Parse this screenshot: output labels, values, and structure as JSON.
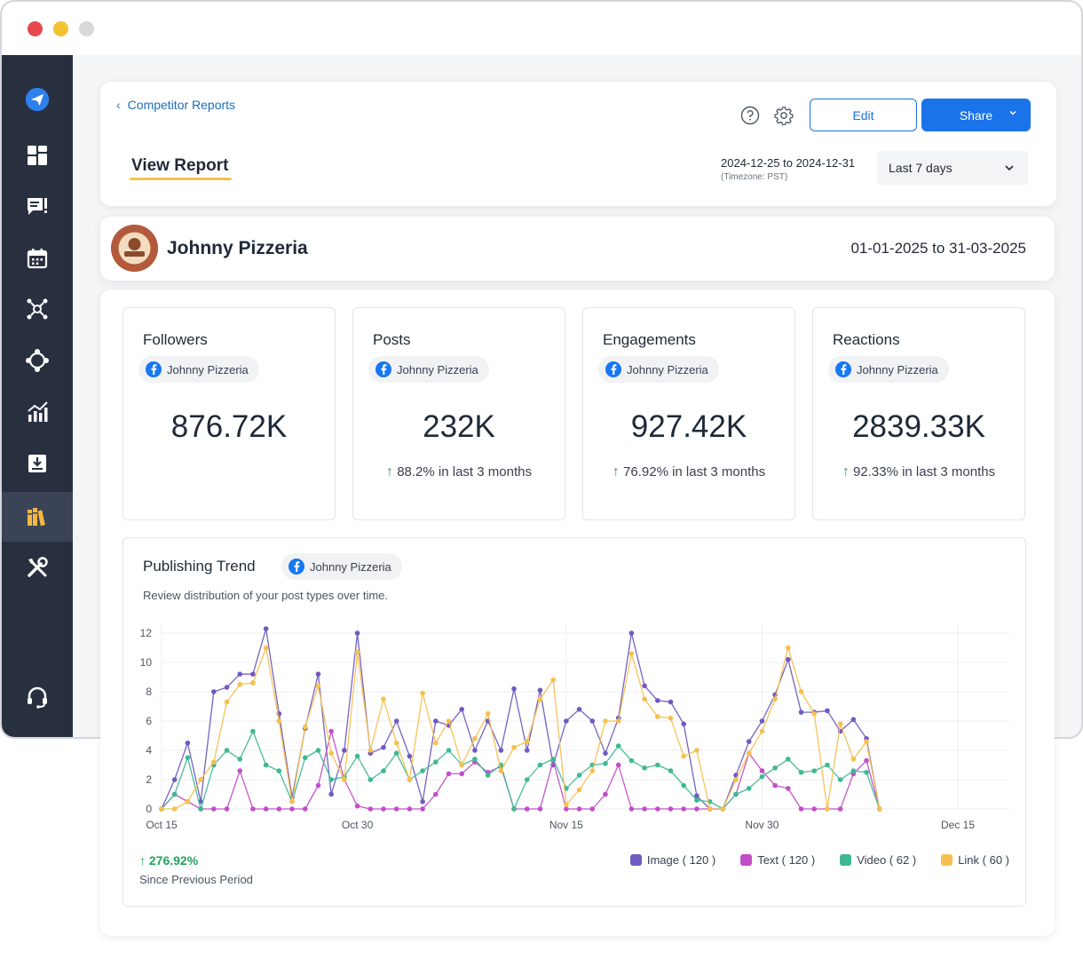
{
  "window": {
    "sidebar_items": [
      {
        "name": "send-icon",
        "label": "Publish"
      },
      {
        "name": "dashboard-icon",
        "label": "Dashboard"
      },
      {
        "name": "message-icon",
        "label": "Inbox"
      },
      {
        "name": "calendar-icon",
        "label": "Calendar"
      },
      {
        "name": "network-icon",
        "label": "Social"
      },
      {
        "name": "diamond-move-icon",
        "label": "Engage"
      },
      {
        "name": "analytics-icon",
        "label": "Analytics"
      },
      {
        "name": "download-icon",
        "label": "Downloads"
      },
      {
        "name": "library-icon",
        "label": "Library",
        "active": true
      },
      {
        "name": "tools-icon",
        "label": "Tools"
      },
      {
        "name": "support-icon",
        "label": "Support"
      }
    ]
  },
  "header": {
    "back_label": "Competitor Reports",
    "title": "View Report",
    "edit_label": "Edit",
    "share_label": "Share",
    "date_range": "2024-12-25 to 2024-12-31",
    "timezone": "(Timezone: PST)",
    "period_select": "Last 7 days"
  },
  "profile": {
    "name": "Johnny Pizzeria",
    "date_range": "01-01-2025 to 31-03-2025"
  },
  "stats": [
    {
      "title": "Followers",
      "account": "Johnny Pizzeria",
      "value": "876.72K",
      "change": ""
    },
    {
      "title": "Posts",
      "account": "Johnny Pizzeria",
      "value": "232K",
      "change": "88.2% in last 3 months"
    },
    {
      "title": "Engagements",
      "account": "Johnny Pizzeria",
      "value": "927.42K",
      "change": "76.92% in last 3 months"
    },
    {
      "title": "Reactions",
      "account": "Johnny Pizzeria",
      "value": "2839.33K",
      "change": "92.33% in last 3 months"
    }
  ],
  "trend": {
    "title": "Publishing Trend",
    "account": "Johnny Pizzeria",
    "subtitle": "Review distribution of your post types over time.",
    "growth": "276.92%",
    "growth_label": "Since Previous Period"
  },
  "colors": {
    "image": "#6f5bbf",
    "text": "#c14ec9",
    "video": "#3fb893",
    "link": "#f5c04f",
    "accent": "#1a73e8"
  },
  "chart_data": {
    "type": "line",
    "ylim": [
      0,
      12
    ],
    "yticks": [
      0,
      2,
      4,
      6,
      8,
      10,
      12
    ],
    "xticks": [
      {
        "day": 0,
        "label": "Oct 15"
      },
      {
        "day": 15,
        "label": "Oct 30"
      },
      {
        "day": 31,
        "label": "Nov 15"
      },
      {
        "day": 46,
        "label": "Nov 30"
      },
      {
        "day": 61,
        "label": "Dec 15"
      }
    ],
    "series": [
      {
        "name": "Image ( 120 )",
        "key": "image",
        "points": [
          [
            0,
            0
          ],
          [
            1,
            2
          ],
          [
            2,
            4.5
          ],
          [
            3,
            0.5
          ],
          [
            4,
            8
          ],
          [
            5,
            8.3
          ],
          [
            6,
            9.2
          ],
          [
            7,
            9.2
          ],
          [
            8,
            12.3
          ],
          [
            9,
            6.5
          ],
          [
            10,
            0.8
          ],
          [
            11,
            5.5
          ],
          [
            12,
            9.2
          ],
          [
            13,
            1
          ],
          [
            14,
            4
          ],
          [
            15,
            12
          ],
          [
            16,
            3.8
          ],
          [
            17,
            4.2
          ],
          [
            18,
            6
          ],
          [
            19,
            3.6
          ],
          [
            20,
            0.5
          ],
          [
            21,
            6
          ],
          [
            22,
            5.7
          ],
          [
            23,
            6.8
          ],
          [
            24,
            4
          ],
          [
            25,
            6
          ],
          [
            26,
            4
          ],
          [
            27,
            8.2
          ],
          [
            28,
            4
          ],
          [
            29,
            8.1
          ],
          [
            30,
            3
          ],
          [
            31,
            6
          ],
          [
            32,
            6.8
          ],
          [
            33,
            6
          ],
          [
            34,
            3.8
          ],
          [
            35,
            6.2
          ],
          [
            36,
            12
          ],
          [
            37,
            8.4
          ],
          [
            38,
            7.4
          ],
          [
            39,
            7.3
          ],
          [
            40,
            5.8
          ],
          [
            41,
            0.9
          ],
          [
            42,
            0
          ],
          [
            43,
            0
          ],
          [
            44,
            2.3
          ],
          [
            45,
            4.6
          ],
          [
            46,
            6
          ],
          [
            47,
            7.8
          ],
          [
            48,
            10.2
          ],
          [
            49,
            6.6
          ],
          [
            50,
            6.6
          ],
          [
            51,
            6.7
          ],
          [
            52,
            5.3
          ],
          [
            53,
            6.1
          ],
          [
            54,
            4.8
          ],
          [
            55,
            0
          ]
        ]
      },
      {
        "name": "Text ( 120 )",
        "key": "text",
        "points": [
          [
            0,
            0
          ],
          [
            1,
            1
          ],
          [
            2,
            0.5
          ],
          [
            3,
            0
          ],
          [
            4,
            0
          ],
          [
            5,
            0
          ],
          [
            6,
            2.6
          ],
          [
            7,
            0
          ],
          [
            8,
            0
          ],
          [
            9,
            0
          ],
          [
            10,
            0
          ],
          [
            11,
            0
          ],
          [
            12,
            1.6
          ],
          [
            13,
            5.3
          ],
          [
            14,
            2
          ],
          [
            15,
            0.2
          ],
          [
            16,
            0
          ],
          [
            17,
            0
          ],
          [
            18,
            0
          ],
          [
            19,
            0
          ],
          [
            20,
            0
          ],
          [
            21,
            1
          ],
          [
            22,
            2.4
          ],
          [
            23,
            2.4
          ],
          [
            24,
            3.2
          ],
          [
            25,
            2.5
          ],
          [
            26,
            2.9
          ],
          [
            27,
            0
          ],
          [
            28,
            0
          ],
          [
            29,
            0
          ],
          [
            30,
            3.3
          ],
          [
            31,
            0
          ],
          [
            32,
            0
          ],
          [
            33,
            0
          ],
          [
            34,
            1
          ],
          [
            35,
            3
          ],
          [
            36,
            0
          ],
          [
            37,
            0
          ],
          [
            38,
            0
          ],
          [
            39,
            0
          ],
          [
            40,
            0
          ],
          [
            41,
            0
          ],
          [
            42,
            0
          ],
          [
            43,
            0
          ],
          [
            44,
            1
          ],
          [
            45,
            3.8
          ],
          [
            46,
            2.6
          ],
          [
            47,
            1.6
          ],
          [
            48,
            1.4
          ],
          [
            49,
            0
          ],
          [
            50,
            0
          ],
          [
            51,
            0
          ],
          [
            52,
            0
          ],
          [
            53,
            2.4
          ],
          [
            54,
            3.3
          ],
          [
            55,
            0
          ]
        ]
      },
      {
        "name": "Video ( 62 )",
        "key": "video",
        "points": [
          [
            0,
            0
          ],
          [
            1,
            1
          ],
          [
            2,
            3.5
          ],
          [
            3,
            0
          ],
          [
            4,
            3
          ],
          [
            5,
            4
          ],
          [
            6,
            3.4
          ],
          [
            7,
            5.3
          ],
          [
            8,
            3
          ],
          [
            9,
            2.6
          ],
          [
            10,
            0.5
          ],
          [
            11,
            3.5
          ],
          [
            12,
            4
          ],
          [
            13,
            2
          ],
          [
            14,
            2.2
          ],
          [
            15,
            3.6
          ],
          [
            16,
            2
          ],
          [
            17,
            2.6
          ],
          [
            18,
            3.8
          ],
          [
            19,
            2
          ],
          [
            20,
            2.6
          ],
          [
            21,
            3.2
          ],
          [
            22,
            4
          ],
          [
            23,
            3
          ],
          [
            24,
            3.4
          ],
          [
            25,
            2.3
          ],
          [
            26,
            3
          ],
          [
            27,
            0
          ],
          [
            28,
            2
          ],
          [
            29,
            3
          ],
          [
            30,
            3.4
          ],
          [
            31,
            1.4
          ],
          [
            32,
            2.3
          ],
          [
            33,
            3
          ],
          [
            34,
            3.1
          ],
          [
            35,
            4.3
          ],
          [
            36,
            3.3
          ],
          [
            37,
            2.8
          ],
          [
            38,
            3
          ],
          [
            39,
            2.6
          ],
          [
            40,
            1.6
          ],
          [
            41,
            0.6
          ],
          [
            42,
            0.5
          ],
          [
            43,
            0
          ],
          [
            44,
            1
          ],
          [
            45,
            1.4
          ],
          [
            46,
            2.2
          ],
          [
            47,
            2.8
          ],
          [
            48,
            3.4
          ],
          [
            49,
            2.5
          ],
          [
            50,
            2.6
          ],
          [
            51,
            3
          ],
          [
            52,
            2
          ],
          [
            53,
            2.6
          ],
          [
            54,
            2.5
          ],
          [
            55,
            0
          ]
        ]
      },
      {
        "name": "Link ( 60 )",
        "key": "link",
        "points": [
          [
            0,
            0
          ],
          [
            1,
            0
          ],
          [
            2,
            0.5
          ],
          [
            3,
            2
          ],
          [
            4,
            3.2
          ],
          [
            5,
            7.3
          ],
          [
            6,
            8.5
          ],
          [
            7,
            8.6
          ],
          [
            8,
            11
          ],
          [
            9,
            6
          ],
          [
            10,
            0.5
          ],
          [
            11,
            5.6
          ],
          [
            12,
            8.4
          ],
          [
            13,
            3.8
          ],
          [
            14,
            2
          ],
          [
            15,
            10.7
          ],
          [
            16,
            4
          ],
          [
            17,
            7.5
          ],
          [
            18,
            4.5
          ],
          [
            19,
            2
          ],
          [
            20,
            7.9
          ],
          [
            21,
            4.5
          ],
          [
            22,
            6
          ],
          [
            23,
            3
          ],
          [
            24,
            4.8
          ],
          [
            25,
            6.5
          ],
          [
            26,
            2.6
          ],
          [
            27,
            4.2
          ],
          [
            28,
            4.6
          ],
          [
            29,
            7.5
          ],
          [
            30,
            8.8
          ],
          [
            31,
            0.3
          ],
          [
            32,
            1.3
          ],
          [
            33,
            2.6
          ],
          [
            34,
            6
          ],
          [
            35,
            6
          ],
          [
            36,
            10.6
          ],
          [
            37,
            7.5
          ],
          [
            38,
            6.3
          ],
          [
            39,
            6.2
          ],
          [
            40,
            3.6
          ],
          [
            41,
            4
          ],
          [
            42,
            0
          ],
          [
            43,
            0
          ],
          [
            44,
            2
          ],
          [
            45,
            3.8
          ],
          [
            46,
            5.3
          ],
          [
            47,
            7.5
          ],
          [
            48,
            11
          ],
          [
            49,
            8
          ],
          [
            50,
            6.5
          ],
          [
            51,
            0
          ],
          [
            52,
            5.8
          ],
          [
            53,
            3.4
          ],
          [
            54,
            4.6
          ],
          [
            55,
            0
          ]
        ]
      }
    ]
  }
}
